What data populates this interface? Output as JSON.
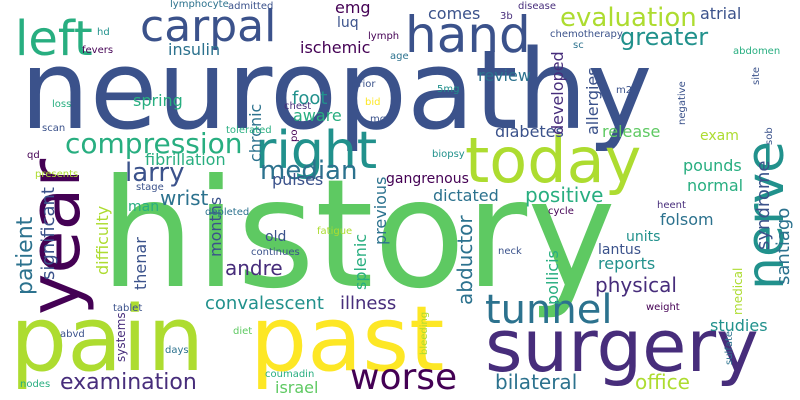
{
  "colors": {
    "background": "#ffffff",
    "palette": {
      "dark_purple": "#440154",
      "purple": "#472d7b",
      "indigo": "#3b528b",
      "blue": "#2c728e",
      "teal": "#21918c",
      "green_teal": "#28ae80",
      "green": "#5ec962",
      "light_green": "#addc30",
      "yellow": "#fde725"
    }
  },
  "words": [
    {
      "text": "history"
    },
    {
      "text": "neuropathy"
    },
    {
      "text": "pain"
    },
    {
      "text": "past"
    },
    {
      "text": "surgery"
    },
    {
      "text": "year"
    },
    {
      "text": "today"
    },
    {
      "text": "right"
    },
    {
      "text": "nerve"
    },
    {
      "text": "hand"
    },
    {
      "text": "left"
    },
    {
      "text": "carpal"
    },
    {
      "text": "tunnel"
    },
    {
      "text": "worse"
    },
    {
      "text": "compression"
    },
    {
      "text": "evaluation"
    },
    {
      "text": "median"
    },
    {
      "text": "larry"
    },
    {
      "text": "greater"
    },
    {
      "text": "examination"
    },
    {
      "text": "patient"
    },
    {
      "text": "significant"
    },
    {
      "text": "syndrome"
    },
    {
      "text": "santiago"
    },
    {
      "text": "abductor"
    },
    {
      "text": "positive"
    },
    {
      "text": "physical"
    },
    {
      "text": "bilateral"
    },
    {
      "text": "office"
    },
    {
      "text": "wrist"
    },
    {
      "text": "andre"
    },
    {
      "text": "convalescent"
    },
    {
      "text": "illness"
    },
    {
      "text": "diabetes"
    },
    {
      "text": "release"
    },
    {
      "text": "dictated"
    },
    {
      "text": "comes"
    },
    {
      "text": "atrial"
    },
    {
      "text": "emg"
    },
    {
      "text": "luq"
    },
    {
      "text": "insulin"
    },
    {
      "text": "ischemic"
    },
    {
      "text": "foot"
    },
    {
      "text": "review"
    },
    {
      "text": "developed"
    },
    {
      "text": "spring"
    },
    {
      "text": "allergies"
    },
    {
      "text": "chronic"
    },
    {
      "text": "aware"
    },
    {
      "text": "fibrillation"
    },
    {
      "text": "pulses"
    },
    {
      "text": "gangrenous"
    },
    {
      "text": "previous"
    },
    {
      "text": "folsom"
    },
    {
      "text": "pounds"
    },
    {
      "text": "normal"
    },
    {
      "text": "studies"
    },
    {
      "text": "reports"
    },
    {
      "text": "units"
    },
    {
      "text": "lantus"
    },
    {
      "text": "pollicis"
    },
    {
      "text": "splenic"
    },
    {
      "text": "months"
    },
    {
      "text": "thenar"
    },
    {
      "text": "old"
    },
    {
      "text": "difficulty"
    },
    {
      "text": "man"
    },
    {
      "text": "exam"
    },
    {
      "text": "israel"
    },
    {
      "text": "systems"
    },
    {
      "text": "medical"
    },
    {
      "text": "lymphocyte"
    },
    {
      "text": "admitted"
    },
    {
      "text": "disease"
    },
    {
      "text": "3b"
    },
    {
      "text": "hd"
    },
    {
      "text": "fevers"
    },
    {
      "text": "lymph"
    },
    {
      "text": "age"
    },
    {
      "text": "chemotherapy"
    },
    {
      "text": "sc"
    },
    {
      "text": "abdomen"
    },
    {
      "text": "site"
    },
    {
      "text": "loss"
    },
    {
      "text": "prior"
    },
    {
      "text": "bid"
    },
    {
      "text": "5mg"
    },
    {
      "text": "m2"
    },
    {
      "text": "negative"
    },
    {
      "text": "chest"
    },
    {
      "text": "po"
    },
    {
      "text": "mg"
    },
    {
      "text": "sob"
    },
    {
      "text": "scan"
    },
    {
      "text": "tolerated"
    },
    {
      "text": "qd"
    },
    {
      "text": "biopsy"
    },
    {
      "text": "presents"
    },
    {
      "text": "stage"
    },
    {
      "text": "depleted"
    },
    {
      "text": "fatigue"
    },
    {
      "text": "continues"
    },
    {
      "text": "cycle"
    },
    {
      "text": "heent"
    },
    {
      "text": "neck"
    },
    {
      "text": "tablet"
    },
    {
      "text": "weight"
    },
    {
      "text": "diet"
    },
    {
      "text": "abvd"
    },
    {
      "text": "days"
    },
    {
      "text": "bleeding"
    },
    {
      "text": "coumadin"
    },
    {
      "text": "sulfate"
    },
    {
      "text": "nodes"
    }
  ]
}
